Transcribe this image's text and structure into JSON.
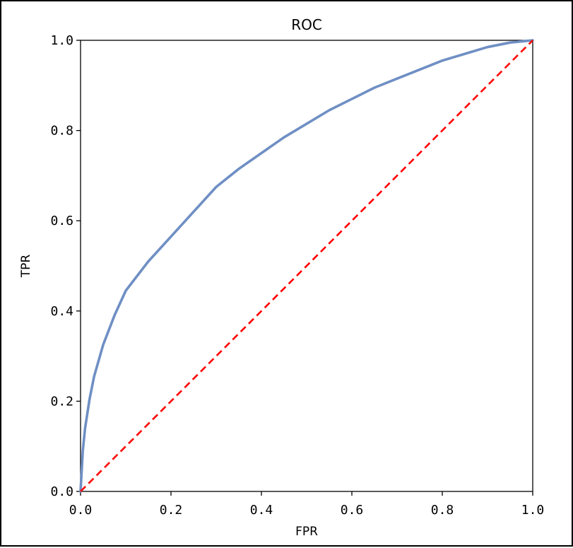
{
  "chart_data": {
    "type": "line",
    "title": "ROC",
    "xlabel": "FPR",
    "ylabel": "TPR",
    "xlim": [
      0.0,
      1.0
    ],
    "ylim": [
      0.0,
      1.0
    ],
    "xticks": [
      "0.0",
      "0.2",
      "0.4",
      "0.6",
      "0.8",
      "1.0"
    ],
    "yticks": [
      "0.0",
      "0.2",
      "0.4",
      "0.6",
      "0.8",
      "1.0"
    ],
    "grid": false,
    "legend": "none",
    "series": [
      {
        "style": "solid",
        "color": "#6f8fc4",
        "x": [
          0.0,
          0.005,
          0.01,
          0.02,
          0.03,
          0.05,
          0.075,
          0.1,
          0.15,
          0.2,
          0.25,
          0.3,
          0.35,
          0.4,
          0.45,
          0.5,
          0.55,
          0.6,
          0.65,
          0.7,
          0.75,
          0.8,
          0.85,
          0.9,
          0.95,
          1.0
        ],
        "y": [
          0.0,
          0.09,
          0.14,
          0.205,
          0.255,
          0.325,
          0.39,
          0.445,
          0.51,
          0.565,
          0.62,
          0.675,
          0.715,
          0.75,
          0.785,
          0.815,
          0.845,
          0.87,
          0.895,
          0.915,
          0.935,
          0.955,
          0.97,
          0.985,
          0.995,
          1.0
        ]
      },
      {
        "style": "dashed",
        "color": "#ff0000",
        "x": [
          0.0,
          1.0
        ],
        "y": [
          0.0,
          1.0
        ]
      }
    ]
  }
}
